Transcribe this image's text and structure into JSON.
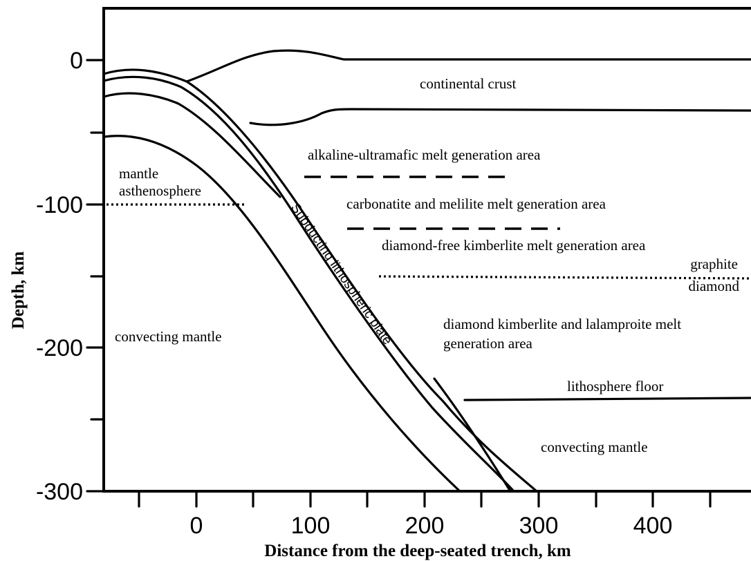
{
  "axes": {
    "y_title": "Depth, km",
    "x_title": "Distance from the deep-seated trench, km",
    "y_ticks": [
      "0",
      "-100",
      "-200",
      "-300"
    ],
    "x_ticks": [
      "0",
      "100",
      "200",
      "300",
      "400"
    ]
  },
  "labels": {
    "continental_crust": "continental crust",
    "alkaline": "alkaline-ultramafic melt generation area",
    "mantle_asthenosphere_1": "mantle",
    "mantle_asthenosphere_2": "asthenosphere",
    "carbonatite": "carbonatite and melilite melt generation area",
    "diamond_free": "diamond-free kimberlite melt generation area",
    "graphite": "graphite",
    "diamond": "diamond",
    "diamond_kimberlite_1": "diamond kimberlite and lalamproite melt",
    "diamond_kimberlite_2": "generation area",
    "convecting_mantle_left": "convecting mantle",
    "lithosphere_floor": "lithosphere floor",
    "convecting_mantle_right": "convecting mantle",
    "subducting_plate": "Subducting lithospheric plate"
  }
}
